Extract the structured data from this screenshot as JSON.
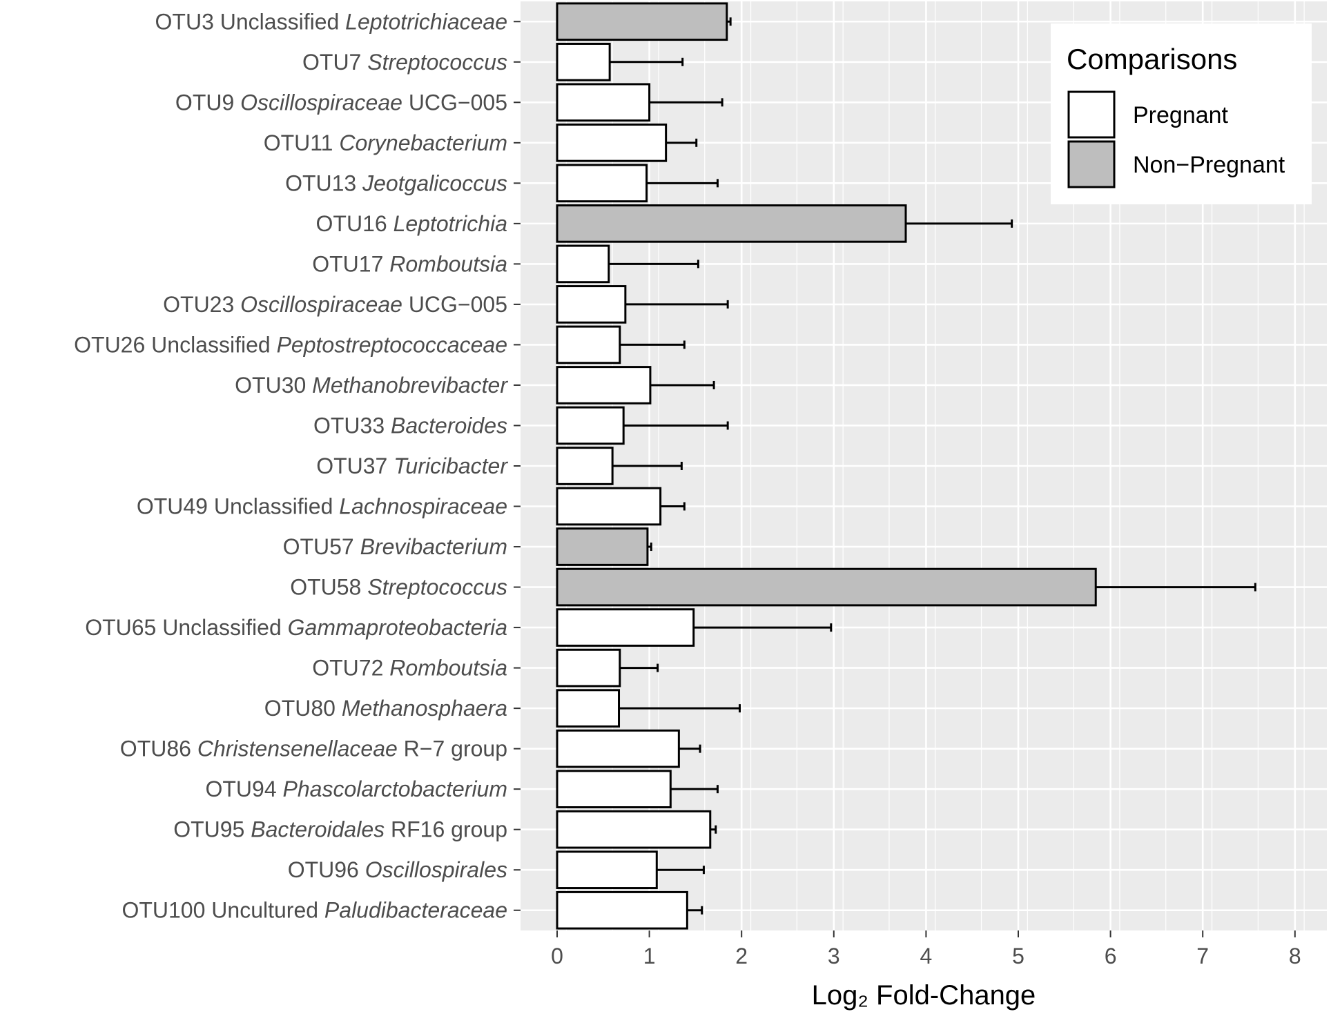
{
  "chart_data": {
    "type": "bar",
    "orientation": "horizontal",
    "xlabel": "Log₂ Fold-Change",
    "xlim": [
      -0.4,
      8.4
    ],
    "xticks": [
      0,
      1,
      2,
      3,
      4,
      5,
      6,
      7,
      8
    ],
    "grid": true,
    "legend": {
      "title": "Comparisons",
      "position": "top-right",
      "entries": [
        {
          "name": "Pregnant",
          "color": "#ffffff"
        },
        {
          "name": "Non−Pregnant",
          "color": "#bebebe"
        }
      ]
    },
    "colors": {
      "panel_bg": "#ebebeb",
      "gridline": "#ffffff",
      "bar_stroke": "#000000",
      "label_text": "#4d4d4d",
      "title_text": "#000000"
    },
    "categories": [
      {
        "name": "OTU3",
        "pre": "Unclassified ",
        "taxon": "Leptotrichiaceae",
        "post": "",
        "group": "Non−Pregnant",
        "value": 1.84,
        "error_upper": 1.88
      },
      {
        "name": "OTU7",
        "pre": "",
        "taxon": "Streptococcus",
        "post": "",
        "group": "Pregnant",
        "value": 0.57,
        "error_upper": 1.36
      },
      {
        "name": "OTU9",
        "pre": "",
        "taxon": "Oscillospiraceae",
        "post": " UCG−005",
        "group": "Pregnant",
        "value": 1.0,
        "error_upper": 1.79
      },
      {
        "name": "OTU11",
        "pre": "",
        "taxon": "Corynebacterium",
        "post": "",
        "group": "Pregnant",
        "value": 1.18,
        "error_upper": 1.51
      },
      {
        "name": "OTU13",
        "pre": "",
        "taxon": "Jeotgalicoccus",
        "post": "",
        "group": "Pregnant",
        "value": 0.97,
        "error_upper": 1.74
      },
      {
        "name": "OTU16",
        "pre": "",
        "taxon": "Leptotrichia",
        "post": "",
        "group": "Non−Pregnant",
        "value": 3.78,
        "error_upper": 4.93
      },
      {
        "name": "OTU17",
        "pre": "",
        "taxon": "Romboutsia",
        "post": "",
        "group": "Pregnant",
        "value": 0.56,
        "error_upper": 1.53
      },
      {
        "name": "OTU23",
        "pre": "",
        "taxon": "Oscillospiraceae",
        "post": " UCG−005",
        "group": "Pregnant",
        "value": 0.74,
        "error_upper": 1.85
      },
      {
        "name": "OTU26",
        "pre": "Unclassified ",
        "taxon": "Peptostreptococcaceae",
        "post": "",
        "group": "Pregnant",
        "value": 0.68,
        "error_upper": 1.38
      },
      {
        "name": "OTU30",
        "pre": "",
        "taxon": "Methanobrevibacter",
        "post": "",
        "group": "Pregnant",
        "value": 1.01,
        "error_upper": 1.7
      },
      {
        "name": "OTU33",
        "pre": "",
        "taxon": "Bacteroides",
        "post": "",
        "group": "Pregnant",
        "value": 0.72,
        "error_upper": 1.85
      },
      {
        "name": "OTU37",
        "pre": "",
        "taxon": "Turicibacter",
        "post": "",
        "group": "Pregnant",
        "value": 0.6,
        "error_upper": 1.35
      },
      {
        "name": "OTU49",
        "pre": "Unclassified ",
        "taxon": "Lachnospiraceae",
        "post": "",
        "group": "Pregnant",
        "value": 1.12,
        "error_upper": 1.38
      },
      {
        "name": "OTU57",
        "pre": "",
        "taxon": "Brevibacterium",
        "post": "",
        "group": "Non−Pregnant",
        "value": 0.98,
        "error_upper": 1.02
      },
      {
        "name": "OTU58",
        "pre": "",
        "taxon": "Streptococcus",
        "post": "",
        "group": "Non−Pregnant",
        "value": 5.84,
        "error_upper": 7.57
      },
      {
        "name": "OTU65",
        "pre": "Unclassified ",
        "taxon": "Gammaproteobacteria",
        "post": "",
        "group": "Pregnant",
        "value": 1.48,
        "error_upper": 2.97
      },
      {
        "name": "OTU72",
        "pre": "",
        "taxon": "Romboutsia",
        "post": "",
        "group": "Pregnant",
        "value": 0.68,
        "error_upper": 1.09
      },
      {
        "name": "OTU80",
        "pre": "",
        "taxon": "Methanosphaera",
        "post": "",
        "group": "Pregnant",
        "value": 0.67,
        "error_upper": 1.98
      },
      {
        "name": "OTU86",
        "pre": "",
        "taxon": "Christensenellaceae",
        "post": " R−7 group",
        "group": "Pregnant",
        "value": 1.32,
        "error_upper": 1.55
      },
      {
        "name": "OTU94",
        "pre": "",
        "taxon": "Phascolarctobacterium",
        "post": "",
        "group": "Pregnant",
        "value": 1.23,
        "error_upper": 1.74
      },
      {
        "name": "OTU95",
        "pre": "",
        "taxon": "Bacteroidales",
        "post": " RF16 group",
        "group": "Pregnant",
        "value": 1.66,
        "error_upper": 1.72
      },
      {
        "name": "OTU96",
        "pre": "",
        "taxon": "Oscillospirales",
        "post": "",
        "group": "Pregnant",
        "value": 1.08,
        "error_upper": 1.59
      },
      {
        "name": "OTU100",
        "pre": "Uncultured ",
        "taxon": "Paludibacteraceae",
        "post": "",
        "group": "Pregnant",
        "value": 1.41,
        "error_upper": 1.57
      }
    ]
  }
}
